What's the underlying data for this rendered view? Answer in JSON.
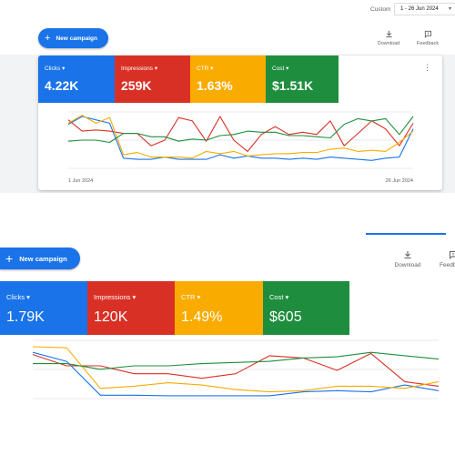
{
  "top": {
    "date_label": "Custom",
    "date_range": "1 - 26 Jun 2024"
  },
  "toolbar": {
    "new_campaign": "New campaign",
    "download": "Download",
    "feedback": "Feedback"
  },
  "panel1": {
    "metrics": [
      {
        "label": "Clicks",
        "value": "4.22K",
        "color": "#1a73e8"
      },
      {
        "label": "Impressions",
        "value": "259K",
        "color": "#d93025"
      },
      {
        "label": "CTR",
        "value": "1.63%",
        "color": "#f9ab00"
      },
      {
        "label": "Cost",
        "value": "$1.51K",
        "color": "#1e8e3e"
      }
    ],
    "x_start": "1 Jun 2024",
    "x_end": "26 Jun 2024"
  },
  "panel2": {
    "metrics": [
      {
        "label": "Clicks",
        "value": "1.79K",
        "color": "#1a73e8"
      },
      {
        "label": "Impressions",
        "value": "120K",
        "color": "#d93025"
      },
      {
        "label": "CTR",
        "value": "1.49%",
        "color": "#f9ab00"
      },
      {
        "label": "Cost",
        "value": "$605",
        "color": "#1e8e3e"
      }
    ]
  },
  "chart_data": [
    {
      "type": "line",
      "x": [
        "1 Jun 2024",
        "",
        "",
        "",
        "",
        "",
        "",
        "",
        "",
        "",
        "",
        "",
        "",
        "",
        "",
        "",
        "",
        "",
        "",
        "",
        "",
        "",
        "",
        "",
        "",
        "26 Jun 2024"
      ],
      "ylim": [
        0,
        100
      ],
      "grid": true,
      "series": [
        {
          "color": "#1a73e8",
          "values": [
            78,
            92,
            86,
            80,
            18,
            16,
            16,
            20,
            16,
            16,
            16,
            24,
            18,
            22,
            18,
            18,
            16,
            18,
            16,
            20,
            18,
            16,
            14,
            18,
            20,
            70
          ]
        },
        {
          "color": "#d93025",
          "values": [
            86,
            66,
            68,
            66,
            62,
            62,
            40,
            50,
            90,
            84,
            48,
            92,
            50,
            30,
            60,
            74,
            60,
            64,
            60,
            84,
            40,
            62,
            84,
            70,
            40,
            80
          ]
        },
        {
          "color": "#f9ab00",
          "values": [
            80,
            94,
            80,
            90,
            24,
            28,
            20,
            20,
            20,
            18,
            30,
            26,
            30,
            22,
            24,
            26,
            26,
            28,
            28,
            34,
            36,
            30,
            32,
            30,
            46,
            66
          ]
        },
        {
          "color": "#1e8e3e",
          "values": [
            48,
            50,
            50,
            46,
            62,
            62,
            56,
            56,
            48,
            52,
            50,
            58,
            60,
            66,
            64,
            64,
            58,
            58,
            56,
            54,
            78,
            88,
            84,
            88,
            60,
            92
          ]
        }
      ]
    },
    {
      "type": "line",
      "ylim": [
        0,
        100
      ],
      "grid": true,
      "series": [
        {
          "color": "#1a73e8",
          "values": [
            82,
            66,
            6,
            6,
            5,
            5,
            5,
            5,
            12,
            14,
            12,
            24,
            14
          ]
        },
        {
          "color": "#d93025",
          "values": [
            78,
            58,
            58,
            44,
            44,
            36,
            44,
            76,
            72,
            50,
            80,
            30,
            22
          ]
        },
        {
          "color": "#f9ab00",
          "values": [
            92,
            90,
            18,
            22,
            28,
            24,
            16,
            12,
            14,
            22,
            22,
            18,
            30
          ]
        },
        {
          "color": "#1e8e3e",
          "values": [
            62,
            62,
            52,
            58,
            58,
            62,
            64,
            66,
            72,
            74,
            82,
            76,
            70
          ]
        }
      ]
    }
  ]
}
